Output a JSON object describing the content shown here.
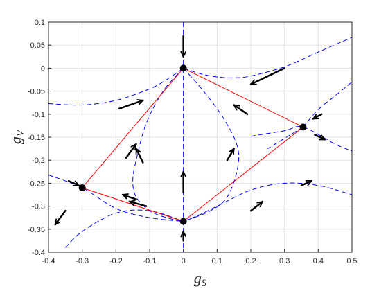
{
  "chart_data": {
    "type": "line",
    "title": "",
    "xlabel": {
      "main": "g",
      "sub": "S"
    },
    "ylabel": {
      "main": "g",
      "sub": "V"
    },
    "xlim": [
      -0.4,
      0.5
    ],
    "ylim": [
      -0.4,
      0.1
    ],
    "grid": true,
    "xticks": [
      "-0.4",
      "-0.3",
      "-0.2",
      "-0.1",
      "0",
      "0.1",
      "0.2",
      "0.3",
      "0.4",
      "0.5"
    ],
    "yticks": [
      "0.1",
      "0.05",
      "0",
      "-0.05",
      "-0.1",
      "-0.15",
      "-0.2",
      "-0.25",
      "-0.3",
      "-0.35",
      "-0.4"
    ],
    "colors": {
      "fixed_points": "#000000",
      "triangle": "#ff0000",
      "flow_lines": "#0000ff",
      "arrows": "#000000"
    },
    "fixed_points": [
      {
        "x": 0,
        "y": 0
      },
      {
        "x": -0.3,
        "y": -0.26
      },
      {
        "x": 0.355,
        "y": -0.128
      },
      {
        "x": 0,
        "y": -0.333
      }
    ],
    "red_edges": [
      [
        [
          0,
          0
        ],
        [
          -0.3,
          -0.26
        ]
      ],
      [
        [
          0,
          0
        ],
        [
          0.355,
          -0.128
        ]
      ],
      [
        [
          -0.3,
          -0.26
        ],
        [
          0,
          -0.333
        ]
      ],
      [
        [
          0.355,
          -0.128
        ],
        [
          0,
          -0.333
        ]
      ]
    ],
    "dashed_curves": [
      [
        [
          -0.4,
          -0.077
        ],
        [
          -0.3,
          -0.08
        ],
        [
          -0.2,
          -0.07
        ],
        [
          -0.1,
          -0.045
        ],
        [
          -0.05,
          -0.025
        ],
        [
          0,
          0
        ]
      ],
      [
        [
          0,
          0
        ],
        [
          0.05,
          -0.012
        ],
        [
          0.1,
          -0.019
        ],
        [
          0.15,
          -0.021
        ],
        [
          0.2,
          -0.017
        ],
        [
          0.3,
          0.003
        ],
        [
          0.4,
          0.035
        ],
        [
          0.5,
          0.067
        ]
      ],
      [
        [
          0,
          0
        ],
        [
          -0.06,
          -0.05
        ],
        [
          -0.11,
          -0.12
        ],
        [
          -0.14,
          -0.2
        ],
        [
          -0.15,
          -0.245
        ],
        [
          -0.14,
          -0.28
        ],
        [
          -0.1,
          -0.31
        ],
        [
          -0.05,
          -0.325
        ],
        [
          0,
          -0.333
        ]
      ],
      [
        [
          0,
          0
        ],
        [
          0.06,
          -0.05
        ],
        [
          0.12,
          -0.11
        ],
        [
          0.16,
          -0.17
        ],
        [
          0.16,
          -0.22
        ],
        [
          0.13,
          -0.28
        ],
        [
          0.08,
          -0.31
        ],
        [
          0,
          -0.333
        ]
      ],
      [
        [
          0,
          0.1
        ],
        [
          0,
          -0.4
        ]
      ],
      [
        [
          -0.4,
          -0.232
        ],
        [
          -0.3,
          -0.26
        ],
        [
          -0.2,
          -0.305
        ],
        [
          -0.1,
          -0.325
        ],
        [
          0,
          -0.333
        ]
      ],
      [
        [
          -0.35,
          -0.39
        ],
        [
          -0.3,
          -0.355
        ],
        [
          -0.2,
          -0.315
        ],
        [
          -0.1,
          -0.31
        ],
        [
          0,
          -0.333
        ]
      ],
      [
        [
          0,
          -0.333
        ],
        [
          0.05,
          -0.318
        ],
        [
          0.1,
          -0.3
        ],
        [
          0.2,
          -0.265
        ],
        [
          0.3,
          -0.25
        ],
        [
          0.4,
          -0.255
        ],
        [
          0.5,
          -0.275
        ]
      ],
      [
        [
          0.2,
          -0.148
        ],
        [
          0.3,
          -0.136
        ],
        [
          0.355,
          -0.128
        ],
        [
          0.45,
          -0.165
        ],
        [
          0.5,
          -0.18
        ]
      ],
      [
        [
          0.355,
          -0.128
        ],
        [
          0.4,
          -0.09
        ],
        [
          0.45,
          -0.06
        ],
        [
          0.5,
          -0.03
        ]
      ],
      [
        [
          0.355,
          -0.128
        ],
        [
          0.25,
          -0.175
        ]
      ]
    ],
    "arrows": [
      {
        "from": [
          0,
          0.07
        ],
        "to": [
          0,
          0.025
        ]
      },
      {
        "from": [
          0,
          -0.375
        ],
        "to": [
          0,
          -0.355
        ]
      },
      {
        "from": [
          0,
          -0.27
        ],
        "to": [
          0,
          -0.225
        ]
      },
      {
        "from": [
          -0.19,
          -0.088
        ],
        "to": [
          -0.12,
          -0.07
        ]
      },
      {
        "from": [
          0.3,
          0.0
        ],
        "to": [
          0.2,
          -0.035
        ]
      },
      {
        "from": [
          0.19,
          -0.1
        ],
        "to": [
          0.15,
          -0.08
        ]
      },
      {
        "from": [
          -0.17,
          -0.195
        ],
        "to": [
          -0.14,
          -0.165
        ]
      },
      {
        "from": [
          -0.14,
          -0.285
        ],
        "to": [
          -0.18,
          -0.275
        ]
      },
      {
        "from": [
          -0.11,
          -0.3
        ],
        "to": [
          -0.16,
          -0.29
        ]
      },
      {
        "from": [
          -0.34,
          -0.245
        ],
        "to": [
          -0.31,
          -0.255
        ]
      },
      {
        "from": [
          -0.35,
          -0.31
        ],
        "to": [
          -0.38,
          -0.34
        ]
      },
      {
        "from": [
          -0.12,
          -0.205
        ],
        "to": [
          -0.14,
          -0.175
        ]
      },
      {
        "from": [
          0.13,
          -0.2
        ],
        "to": [
          0.15,
          -0.175
        ]
      },
      {
        "from": [
          0.2,
          -0.31
        ],
        "to": [
          0.235,
          -0.29
        ]
      },
      {
        "from": [
          0.35,
          -0.255
        ],
        "to": [
          0.38,
          -0.245
        ]
      },
      {
        "from": [
          0.41,
          -0.1
        ],
        "to": [
          0.385,
          -0.11
        ]
      },
      {
        "from": [
          0.39,
          -0.145
        ],
        "to": [
          0.42,
          -0.155
        ]
      }
    ]
  }
}
